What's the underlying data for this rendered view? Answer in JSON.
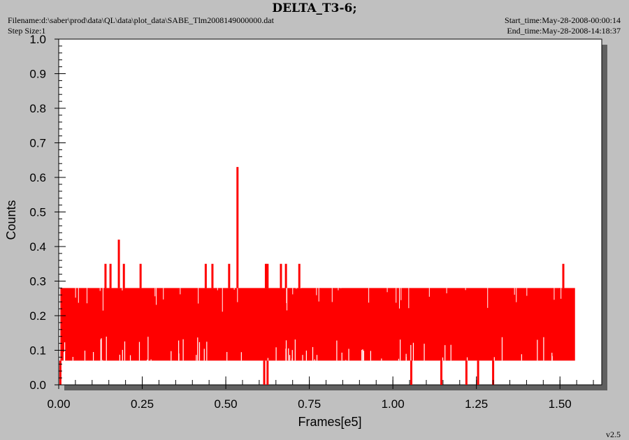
{
  "header": {
    "title": "DELTA_T3-6;",
    "filename": "Filename:d:\\saber\\prod\\data\\QL\\data\\plot_data\\SABE_Tlm2008149000000.dat",
    "step_size": "Step Size:1",
    "start_time": "Start_time:May-28-2008-00:00:14",
    "end_time": "End_time:May-28-2008-14:18:37"
  },
  "footer": {
    "version": "v2.5"
  },
  "colors": {
    "series": "#ff0000",
    "plot_background": "#ffffff",
    "page_background": "#c0c0c0",
    "shadow": "#606060"
  },
  "chart_data": {
    "type": "line",
    "title": "DELTA_T3-6;",
    "xlabel": "Frames[e5]",
    "ylabel": "Counts",
    "xlim": [
      0,
      1.625
    ],
    "ylim": [
      0,
      1.0
    ],
    "xticks": [
      "0.00",
      "0.25",
      "0.50",
      "0.75",
      "1.00",
      "1.25",
      "1.50"
    ],
    "yticks": [
      "0.0",
      "0.1",
      "0.2",
      "0.3",
      "0.4",
      "0.5",
      "0.6",
      "0.7",
      "0.8",
      "0.9",
      "1.0"
    ],
    "grid": false,
    "series": [
      {
        "band": {
          "x_start": 0.005,
          "x_end": 1.545,
          "y_low": 0.07,
          "y_high": 0.28
        },
        "spikes": [
          {
            "x": 0.14,
            "y": 0.35
          },
          {
            "x": 0.155,
            "y": 0.35
          },
          {
            "x": 0.18,
            "y": 0.42
          },
          {
            "x": 0.195,
            "y": 0.35
          },
          {
            "x": 0.245,
            "y": 0.35
          },
          {
            "x": 0.44,
            "y": 0.35
          },
          {
            "x": 0.46,
            "y": 0.35
          },
          {
            "x": 0.51,
            "y": 0.35
          },
          {
            "x": 0.535,
            "y": 0.63
          },
          {
            "x": 0.62,
            "y": 0.35
          },
          {
            "x": 0.625,
            "y": 0.35
          },
          {
            "x": 0.665,
            "y": 0.35
          },
          {
            "x": 0.68,
            "y": 0.35
          },
          {
            "x": 0.72,
            "y": 0.35
          },
          {
            "x": 1.51,
            "y": 0.35
          }
        ],
        "dips": [
          {
            "x": 0.005,
            "y": 0.0
          },
          {
            "x": 0.615,
            "y": 0.0
          },
          {
            "x": 0.625,
            "y": 0.0
          },
          {
            "x": 1.055,
            "y": 0.0
          },
          {
            "x": 1.145,
            "y": 0.0
          },
          {
            "x": 1.22,
            "y": 0.0
          },
          {
            "x": 1.255,
            "y": 0.0
          },
          {
            "x": 1.3,
            "y": 0.0
          }
        ]
      }
    ]
  }
}
